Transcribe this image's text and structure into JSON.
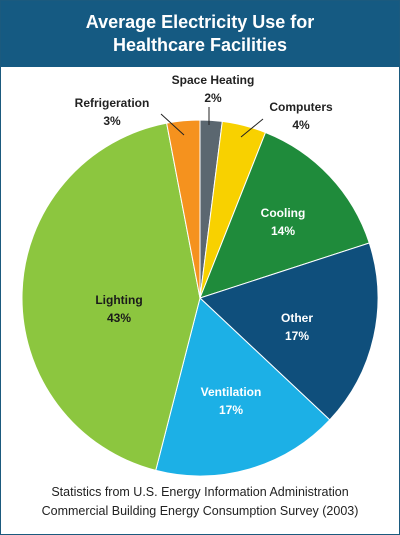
{
  "chart_data": {
    "type": "pie",
    "title": "Average Electricity Use for Healthcare Facilities",
    "categories": [
      "Space Heating",
      "Computers",
      "Cooling",
      "Other",
      "Ventilation",
      "Lighting",
      "Refrigeration"
    ],
    "values": [
      2,
      4,
      14,
      17,
      17,
      43,
      3
    ],
    "value_labels": [
      "2%",
      "4%",
      "14%",
      "17%",
      "17%",
      "43%",
      "3%"
    ],
    "colors": [
      "#5b6770",
      "#f8d100",
      "#1f8b3b",
      "#0f4f7c",
      "#1cb0e6",
      "#8cc63f",
      "#f5921e"
    ],
    "source": [
      "Statistics from U.S. Energy Information Administration",
      "Commercial Building Energy Consumption Survey (2003)"
    ]
  }
}
